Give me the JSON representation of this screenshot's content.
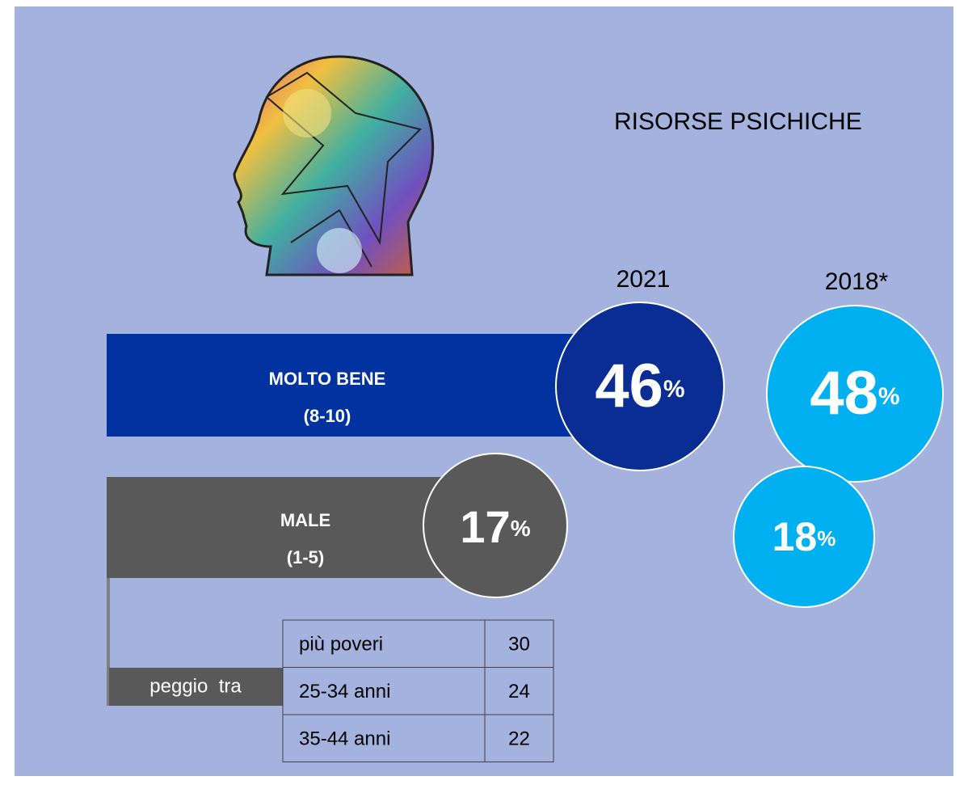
{
  "title": "RISORSE PSICHICHE",
  "unit": "%",
  "years": [
    "2021",
    "2018*"
  ],
  "rows": [
    {
      "label": "MOLTO BENE",
      "range": "(8-10)",
      "value_2021": 46,
      "value_2018": 48
    },
    {
      "label": "MALE",
      "range": "(1-5)",
      "value_2021": 17,
      "value_2018": 18
    }
  ],
  "worse_among": {
    "label": "peggio  tra",
    "rows": [
      [
        "più poveri",
        30
      ],
      [
        "25-34 anni",
        24
      ],
      [
        "35-44 anni",
        22
      ]
    ]
  }
}
